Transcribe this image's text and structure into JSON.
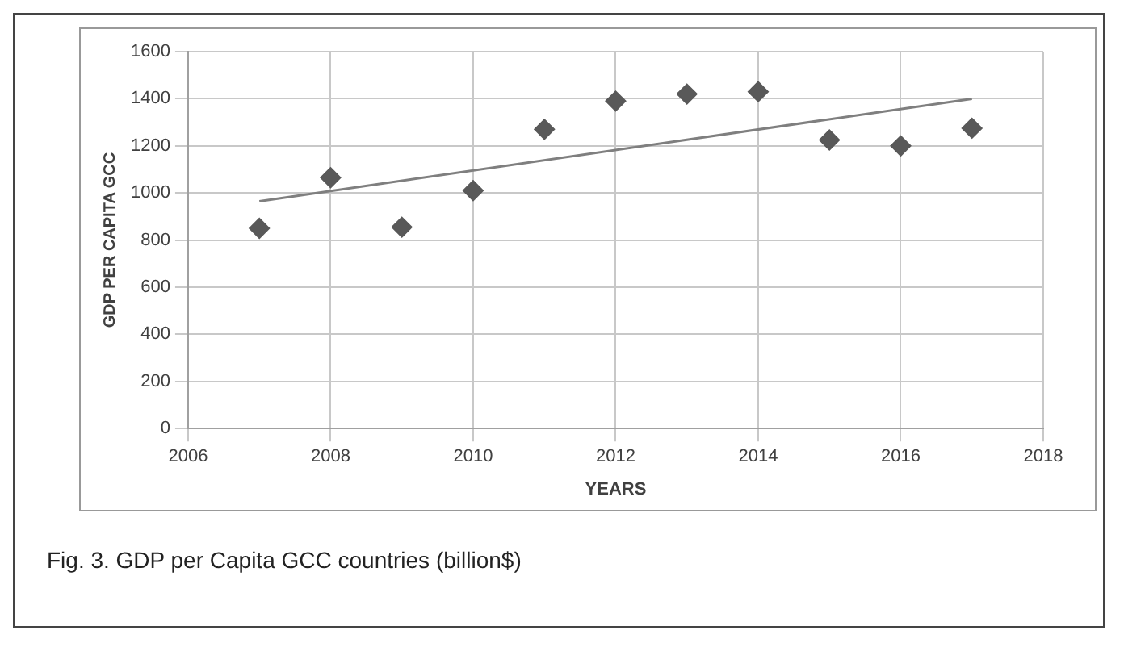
{
  "chart_data": {
    "type": "scatter",
    "xlabel": "YEARS",
    "ylabel": "GDP PER CAPITA GCC",
    "annotations": [
      "Fig. 3. GDP per Capita GCC countries (billion$)"
    ],
    "x": [
      2007,
      2008,
      2009,
      2010,
      2011,
      2012,
      2013,
      2014,
      2015,
      2016,
      2017
    ],
    "series": [
      {
        "color": "#595959",
        "values": [
          850,
          1065,
          855,
          1010,
          1270,
          1390,
          1420,
          1430,
          1225,
          1200,
          1275
        ]
      },
      {
        "type": "line",
        "marker": "none",
        "color": "#7f7f7f",
        "x": [
          2007,
          2017
        ],
        "values": [
          965,
          1400
        ]
      }
    ],
    "xlim": [
      2006,
      2018
    ],
    "xticks": [
      2006,
      2008,
      2010,
      2012,
      2014,
      2016,
      2018
    ],
    "ylim": [
      0,
      1600
    ],
    "yticks": [
      0,
      200,
      400,
      600,
      800,
      1000,
      1200,
      1400,
      1600
    ],
    "grid": true,
    "marker": "diamond"
  }
}
